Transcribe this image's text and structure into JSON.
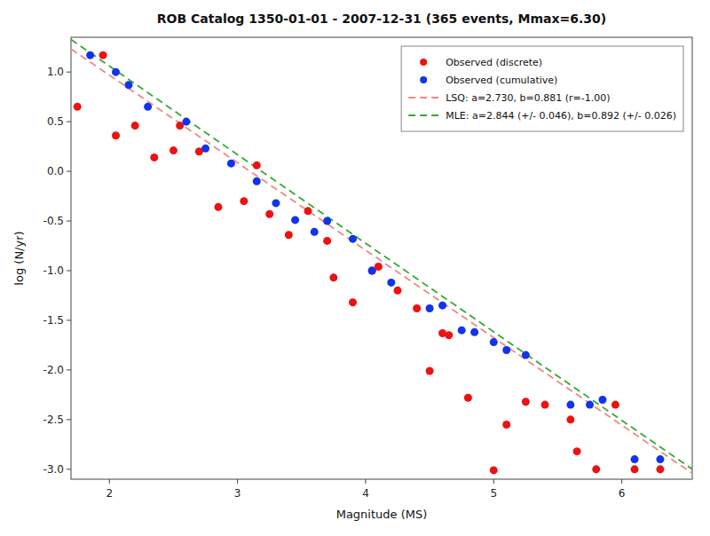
{
  "chart_data": {
    "type": "scatter",
    "title": "ROB Catalog 1350-01-01 - 2007-12-31 (365 events, Mmax=6.30)",
    "x_label": "Magnitude (MS)",
    "y_label": "log (N/yr)",
    "xlim": [
      1.7,
      6.55
    ],
    "ylim": [
      -3.1,
      1.35
    ],
    "xticks": [
      2,
      3,
      4,
      5,
      6
    ],
    "yticks": [
      {
        "value": -3.0,
        "label": "-3.0"
      },
      -2.5,
      {
        "value": -2.0,
        "label": "-2.0"
      },
      -1.5,
      {
        "value": -1.0,
        "label": "-1.0"
      },
      -0.5,
      {
        "value": 0.0,
        "label": "0.0"
      },
      0.5,
      {
        "value": 1.0,
        "label": "1.0"
      }
    ],
    "grid": false,
    "legend": "upper right",
    "series": [
      {
        "name": "Observed (discrete)",
        "type": "scatter",
        "marker": "circle",
        "color": "#ee1111",
        "x": [
          1.75,
          1.95,
          2.05,
          2.2,
          2.35,
          2.5,
          2.55,
          2.7,
          2.85,
          3.05,
          3.15,
          3.25,
          3.4,
          3.55,
          3.7,
          3.75,
          3.9,
          4.05,
          4.1,
          4.25,
          4.4,
          4.5,
          4.6,
          4.65,
          4.8,
          5.0,
          5.1,
          5.25,
          5.4,
          5.6,
          5.65,
          5.8,
          5.95,
          6.1,
          6.3
        ],
        "values": [
          0.65,
          1.17,
          0.36,
          0.46,
          0.14,
          0.21,
          0.46,
          0.2,
          -0.36,
          -0.3,
          0.06,
          -0.43,
          -0.64,
          -0.4,
          -0.7,
          -1.07,
          -1.32,
          -1.0,
          -0.96,
          -1.2,
          -1.38,
          -2.01,
          -1.63,
          -1.65,
          -2.28,
          -3.01,
          -2.55,
          -2.32,
          -2.35,
          -2.5,
          -2.82,
          -3.0,
          -2.35,
          -3.0,
          -3.0
        ]
      },
      {
        "name": "Observed (cumulative)",
        "type": "scatter",
        "marker": "circle",
        "color": "#1133ee",
        "x": [
          1.85,
          2.05,
          2.15,
          2.3,
          2.6,
          2.75,
          2.95,
          3.15,
          3.3,
          3.45,
          3.6,
          3.7,
          3.9,
          4.05,
          4.2,
          4.5,
          4.6,
          4.75,
          4.85,
          5.0,
          5.1,
          5.25,
          5.6,
          5.75,
          5.85,
          6.1,
          6.3
        ],
        "values": [
          1.17,
          1.0,
          0.87,
          0.65,
          0.5,
          0.23,
          0.08,
          -0.1,
          -0.32,
          -0.49,
          -0.61,
          -0.5,
          -0.68,
          -1.0,
          -1.12,
          -1.38,
          -1.35,
          -1.6,
          -1.62,
          -1.72,
          -1.8,
          -1.85,
          -2.35,
          -2.35,
          -2.3,
          -2.9,
          -2.9
        ]
      },
      {
        "name": "LSQ: a=2.730, b=0.881 (r=-1.00)",
        "type": "line",
        "line_style": "dashed",
        "color": "#ee8888",
        "a": 2.73,
        "b": 0.881
      },
      {
        "name": "MLE: a=2.844 (+/- 0.046), b=0.892 (+/- 0.026)",
        "type": "line",
        "line_style": "dashed",
        "color": "#33aa33",
        "a": 2.844,
        "b": 0.892
      }
    ]
  }
}
